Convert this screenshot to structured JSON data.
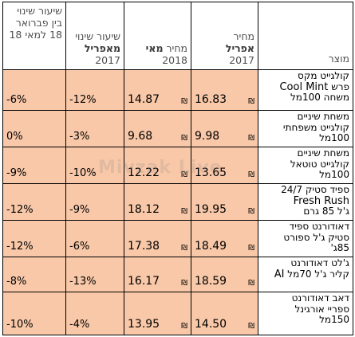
{
  "headers": {
    "change_feb_may": "שיעור שינוי בין פברואר 18 למאי 18",
    "change_since_april_line1": "שיעור שינוי",
    "change_since_april_line2": "מאפריל",
    "change_since_april_year": "2017",
    "price_may_line1": "מחיר",
    "price_may_bold": "מאי",
    "price_may_year": "2018",
    "price_april_line1": "מחיר",
    "price_april_bold": "אפריל",
    "price_april_year": "2017",
    "product": "מוצר"
  },
  "currency_symbol": "₪",
  "rows": [
    {
      "product_line1": "קולגייט מקס",
      "product_line2_he": "פרש",
      "product_line2_en": "Cool Mint",
      "product_line3": "משחה 100מל",
      "april_2017": "16.83",
      "may_2018": "14.87",
      "change_since_april": "-12%",
      "change_feb_may": "-6%"
    },
    {
      "product_line1": "משחת שיניים",
      "product_line2_he": "קולגייט משפחתי",
      "product_line2_en": "",
      "product_line3": "100מל",
      "april_2017": "9.98",
      "may_2018": "9.68",
      "change_since_april": "-3%",
      "change_feb_may": "0%"
    },
    {
      "product_line1": "משחת שיניים",
      "product_line2_he": "קולגייט טוטאל",
      "product_line2_en": "",
      "product_line3": "100מל",
      "april_2017": "13.65",
      "may_2018": "12.22",
      "change_since_april": "-10%",
      "change_feb_may": "-9%"
    },
    {
      "product_line1": "ספיד סטיק 24/7",
      "product_line2_he": "",
      "product_line2_en": "Fresh Rush",
      "product_line3": "ג'ל 85 גרם",
      "april_2017": "19.95",
      "may_2018": "18.12",
      "change_since_april": "-9%",
      "change_feb_may": "-12%"
    },
    {
      "product_line1": "דאודורנט ספיד",
      "product_line2_he": "סטיק ג'ל ספורט",
      "product_line2_en": "",
      "product_line3": "85ג'",
      "april_2017": "18.49",
      "may_2018": "17.38",
      "change_since_april": "-6%",
      "change_feb_may": "-12%"
    },
    {
      "product_line1": "ג'לט דאודורנט",
      "product_line2_he": "קליר ג'ל 70מל",
      "product_line2_en": "AI",
      "product_line3": "",
      "april_2017": "18.59",
      "may_2018": "16.17",
      "change_since_april": "-13%",
      "change_feb_may": "-8%"
    },
    {
      "product_line1": "דאב דאודורנט",
      "product_line2_he": "ספריי אורגינל",
      "product_line2_en": "",
      "product_line3": "150מל",
      "april_2017": "14.50",
      "may_2018": "13.95",
      "change_since_april": "-4%",
      "change_feb_may": "-10%"
    }
  ],
  "watermark": "Mivzak Live"
}
